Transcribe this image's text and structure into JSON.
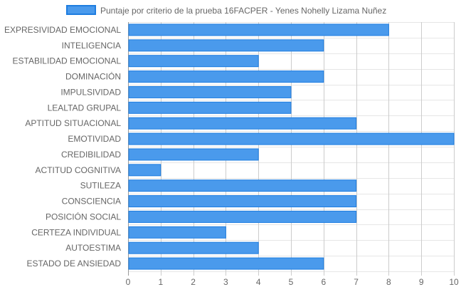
{
  "chart_data": {
    "type": "bar",
    "orientation": "horizontal",
    "title": "",
    "xlabel": "",
    "ylabel": "",
    "xlim": [
      0,
      10
    ],
    "x_ticks": [
      "0",
      "1",
      "2",
      "3",
      "4",
      "5",
      "6",
      "7",
      "8",
      "9",
      "10"
    ],
    "grid": true,
    "legend_position": "top",
    "categories": [
      "EXPRESIVIDAD EMOCIONAL",
      "INTELIGENCIA",
      "ESTABILIDAD EMOCIONAL",
      "DOMINACIÓN",
      "IMPULSIVIDAD",
      "LEALTAD GRUPAL",
      "APTITUD SITUACIONAL",
      "EMOTIVIDAD",
      "CREDIBILIDAD",
      "ACTITUD COGNITIVA",
      "SUTILEZA",
      "CONSCIENCIA",
      "POSICIÓN SOCIAL",
      "CERTEZA INDIVIDUAL",
      "AUTOESTIMA",
      "ESTADO DE ANSIEDAD"
    ],
    "series": [
      {
        "name": "Puntaje por criterio de la prueba 16FACPER - Yenes Nohelly Lizama Nuñez",
        "values": [
          8,
          6,
          4,
          6,
          5,
          5,
          7,
          10,
          4,
          1,
          7,
          7,
          7,
          3,
          4,
          6
        ],
        "color": "#4a9aec",
        "border_color": "#1e7de0"
      }
    ]
  }
}
